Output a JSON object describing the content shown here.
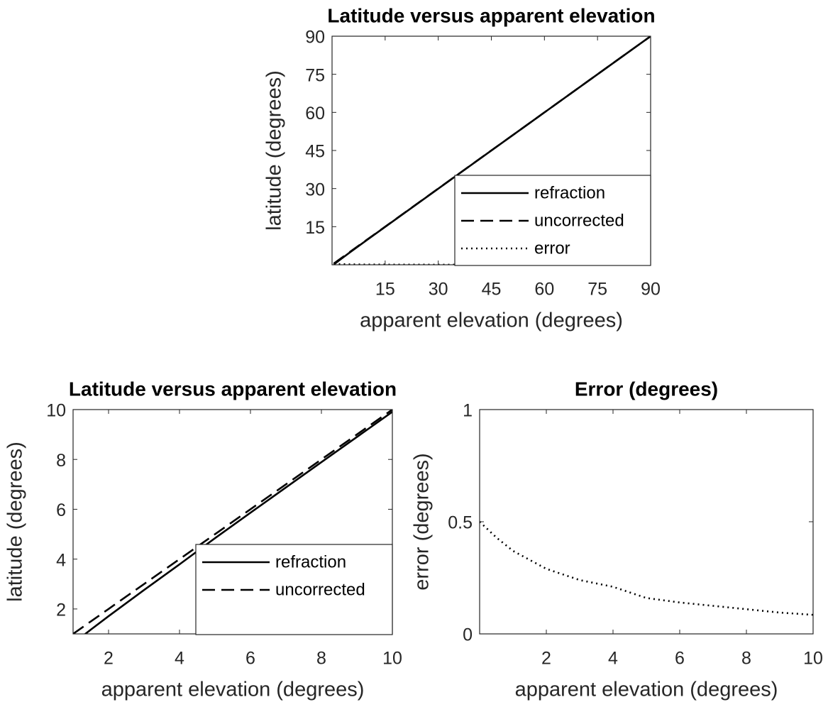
{
  "chart_data": [
    {
      "type": "line",
      "title": "Latitude versus apparent elevation",
      "xlabel": "apparent elevation (degrees)",
      "ylabel": "latitude (degrees)",
      "x": [
        0.5,
        1,
        2,
        5,
        10,
        30,
        60,
        90
      ],
      "series": [
        {
          "name": "refraction",
          "color": "#000000",
          "linestyle": "solid",
          "values": [
            0.07,
            0.62,
            1.71,
            4.84,
            9.91,
            29.97,
            59.99,
            90
          ]
        },
        {
          "name": "uncorrected",
          "color": "#000000",
          "linestyle": "dashed",
          "values": [
            0.5,
            1,
            2,
            5,
            10,
            30,
            60,
            90
          ]
        },
        {
          "name": "error",
          "color": "#000000",
          "linestyle": "dotted",
          "values": [
            0.43,
            0.38,
            0.29,
            0.16,
            0.09,
            0.03,
            0.01,
            0
          ]
        }
      ],
      "xlim": [
        0,
        90
      ],
      "ylim": [
        0,
        90
      ],
      "xticks": [
        15,
        30,
        45,
        60,
        75,
        90
      ],
      "yticks": [
        15,
        30,
        45,
        60,
        75,
        90
      ],
      "legend": "southeast"
    },
    {
      "type": "line",
      "title": "Latitude versus apparent elevation",
      "xlabel": "apparent elevation (degrees)",
      "ylabel": "latitude (degrees)",
      "x": [
        1,
        1.5,
        2,
        3,
        4,
        5,
        6,
        8,
        10
      ],
      "series": [
        {
          "name": "refraction",
          "color": "#000000",
          "linestyle": "solid",
          "values": [
            0.62,
            1.17,
            1.71,
            2.76,
            3.79,
            4.84,
            5.86,
            7.89,
            9.91
          ]
        },
        {
          "name": "uncorrected",
          "color": "#000000",
          "linestyle": "dashed",
          "values": [
            1,
            1.5,
            2,
            3,
            4,
            5,
            6,
            8,
            10
          ]
        }
      ],
      "xlim": [
        1,
        10
      ],
      "ylim": [
        1,
        10
      ],
      "xticks": [
        2,
        4,
        6,
        8,
        10
      ],
      "yticks": [
        2,
        4,
        6,
        8,
        10
      ],
      "legend": "southeast"
    },
    {
      "type": "line",
      "title": "Error (degrees)",
      "xlabel": "apparent elevation (degrees)",
      "ylabel": "error (degrees)",
      "x": [
        0,
        0.5,
        1,
        2,
        3,
        4,
        5,
        6,
        7,
        8,
        9,
        10
      ],
      "series": [
        {
          "color": "#000000",
          "linestyle": "dotted",
          "values": [
            0.5,
            0.43,
            0.37,
            0.29,
            0.24,
            0.21,
            0.16,
            0.14,
            0.125,
            0.11,
            0.095,
            0.085
          ]
        }
      ],
      "xlim": [
        0,
        10
      ],
      "ylim": [
        0,
        1
      ],
      "xticks": [
        2,
        4,
        6,
        8,
        10
      ],
      "yticks": [
        0,
        0.5,
        1
      ]
    }
  ]
}
